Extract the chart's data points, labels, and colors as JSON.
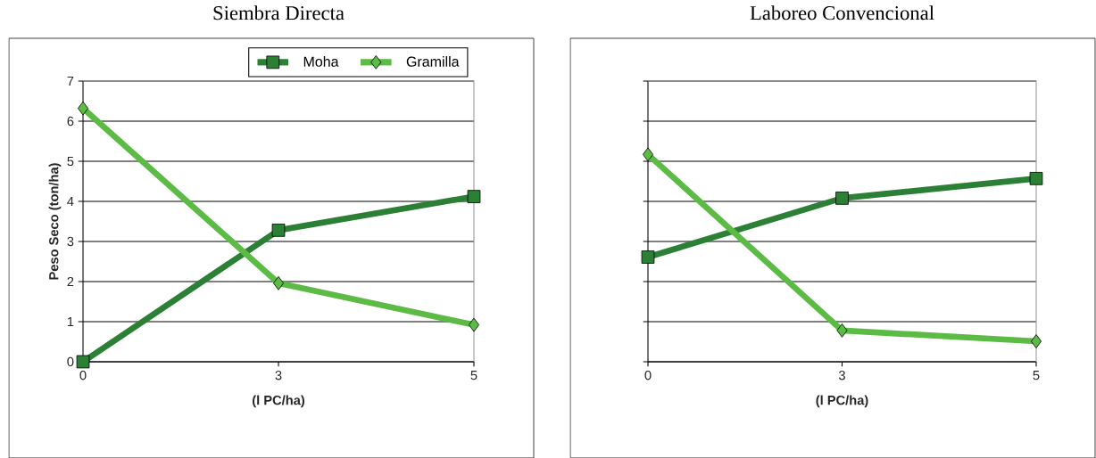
{
  "chart_data": [
    {
      "type": "line",
      "title": "Siembra Directa",
      "xlabel": "(l PC/ha)",
      "ylabel": "Peso Seco (ton/ha)",
      "categories": [
        "0",
        "3",
        "5"
      ],
      "ylim": [
        0,
        7
      ],
      "yticks": [
        0,
        1,
        2,
        3,
        4,
        5,
        6,
        7
      ],
      "grid": "y",
      "legend": "top right",
      "series": [
        {
          "name": "Moha",
          "color": "#2b8035",
          "marker": "square",
          "values": [
            0,
            3.28,
            4.12
          ]
        },
        {
          "name": "Gramilla",
          "color": "#5bbb44",
          "marker": "diamond",
          "values": [
            6.32,
            1.96,
            0.92
          ]
        }
      ]
    },
    {
      "type": "line",
      "title": "Laboreo Convencional",
      "xlabel": "(l PC/ha)",
      "categories": [
        "0",
        "3",
        "5"
      ],
      "ylim": [
        0,
        7
      ],
      "yticks": [
        0,
        1,
        2,
        3,
        4,
        5,
        6,
        7
      ],
      "grid": "y",
      "tick_labels": "x",
      "series": [
        {
          "color": "#2b8035",
          "marker": "square",
          "values": [
            2.61,
            4.08,
            4.57
          ]
        },
        {
          "color": "#5bbb44",
          "marker": "diamond",
          "values": [
            5.17,
            0.78,
            0.51
          ]
        }
      ]
    }
  ]
}
